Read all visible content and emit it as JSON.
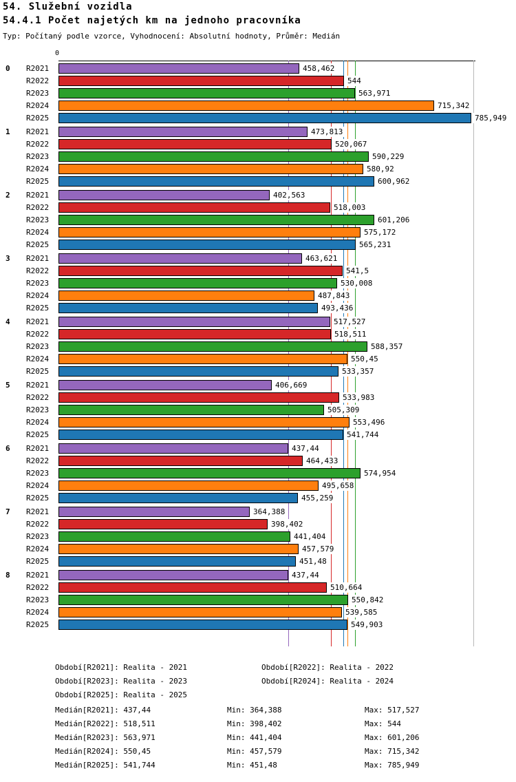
{
  "header": {
    "title_line1": "54. Služební vozidla",
    "title_line2": "54.4.1 Počet najetých km na jednoho pracovníka",
    "meta": "Typ: Počítaný podle vzorce, Vyhodnocení: Absolutní hodnoty, Průměr: Medián"
  },
  "chart_data": {
    "type": "bar",
    "orientation": "horizontal",
    "x_axis": {
      "origin_label": "0",
      "min": 0,
      "max": 785.949
    },
    "grid": "median-lines-per-series",
    "legend_position": "bottom",
    "value_format": "czech-decimal-comma",
    "series": [
      "R2021",
      "R2022",
      "R2023",
      "R2024",
      "R2025"
    ],
    "series_colors": {
      "R2021": "#9467bd",
      "R2022": "#d62728",
      "R2023": "#2ca02c",
      "R2024": "#ff7f0e",
      "R2025": "#1f77b4"
    },
    "groups": [
      {
        "label": "0",
        "values": [
          "458,462",
          "544",
          "563,971",
          "715,342",
          "785,949"
        ]
      },
      {
        "label": "1",
        "values": [
          "473,813",
          "520,067",
          "590,229",
          "580,92",
          "600,962"
        ]
      },
      {
        "label": "2",
        "values": [
          "402,563",
          "518,003",
          "601,206",
          "575,172",
          "565,231"
        ]
      },
      {
        "label": "3",
        "values": [
          "463,621",
          "541,5",
          "530,008",
          "487,843",
          "493,436"
        ]
      },
      {
        "label": "4",
        "values": [
          "517,527",
          "518,511",
          "588,357",
          "550,45",
          "533,357"
        ]
      },
      {
        "label": "5",
        "values": [
          "406,669",
          "533,983",
          "505,309",
          "553,496",
          "541,744"
        ]
      },
      {
        "label": "6",
        "values": [
          "437,44",
          "464,433",
          "574,954",
          "495,658",
          "455,259"
        ]
      },
      {
        "label": "7",
        "values": [
          "364,388",
          "398,402",
          "441,404",
          "457,579",
          "451,48"
        ]
      },
      {
        "label": "8",
        "values": [
          "437,44",
          "510,664",
          "550,842",
          "539,585",
          "549,903"
        ]
      }
    ],
    "medians": {
      "R2021": "437,44",
      "R2022": "518,511",
      "R2023": "563,971",
      "R2024": "550,45",
      "R2025": "541,744"
    }
  },
  "legend_rows": [
    {
      "left": "Období[R2021]: Realita - 2021",
      "right": "Období[R2022]: Realita - 2022"
    },
    {
      "left": "Období[R2023]: Realita - 2023",
      "right": "Období[R2024]: Realita - 2024"
    },
    {
      "left": "Období[R2025]: Realita - 2025",
      "right": ""
    }
  ],
  "stats_rows": [
    {
      "median": "Medián[R2021]: 437,44",
      "min": "Min: 364,388",
      "max": "Max: 517,527"
    },
    {
      "median": "Medián[R2022]: 518,511",
      "min": "Min: 398,402",
      "max": "Max: 544"
    },
    {
      "median": "Medián[R2023]: 563,971",
      "min": "Min: 441,404",
      "max": "Max: 601,206"
    },
    {
      "median": "Medián[R2024]: 550,45",
      "min": "Min: 457,579",
      "max": "Max: 715,342"
    },
    {
      "median": "Medián[R2025]: 541,744",
      "min": "Min: 451,48",
      "max": "Max: 785,949"
    }
  ]
}
